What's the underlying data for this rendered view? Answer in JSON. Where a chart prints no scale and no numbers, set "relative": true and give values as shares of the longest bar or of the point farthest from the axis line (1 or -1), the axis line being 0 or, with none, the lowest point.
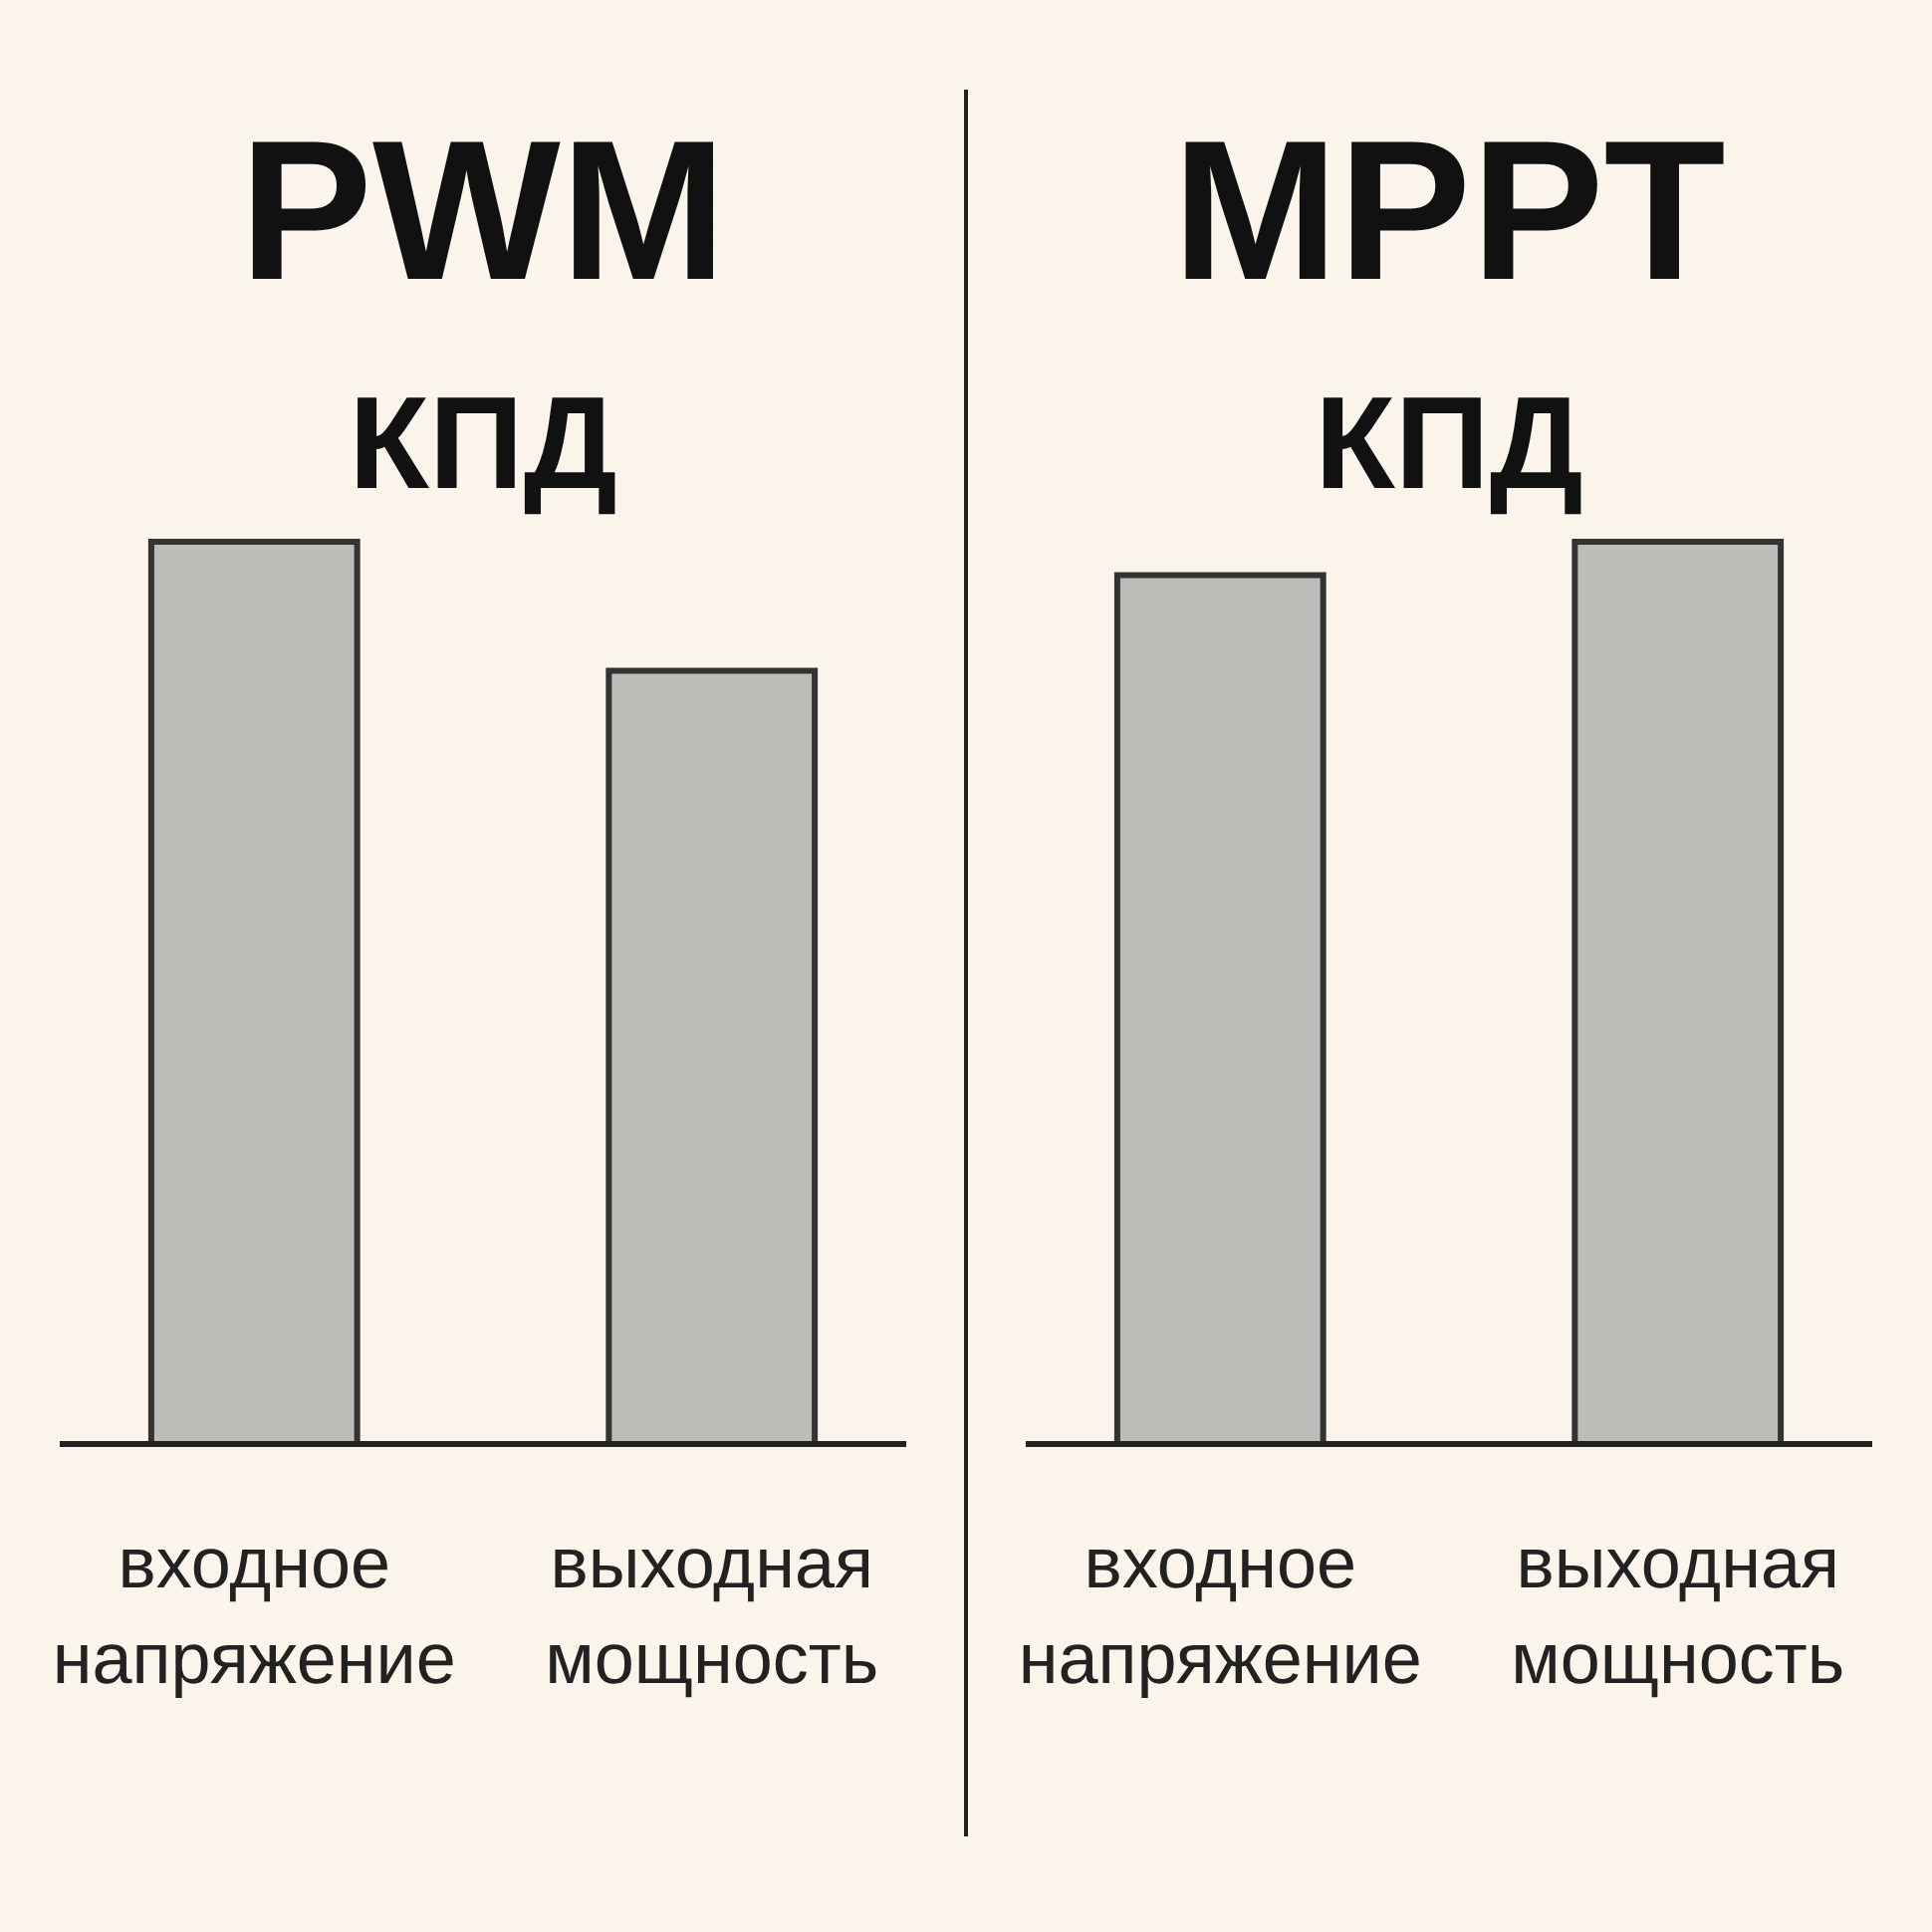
{
  "chart_data": [
    {
      "type": "bar",
      "title": "PWM",
      "subtitle": "КПД",
      "categories": [
        "входное напряжение",
        "выходная мощность"
      ],
      "values": [
        1,
        0.857
      ],
      "color": "#bdbcb8",
      "relative": true
    },
    {
      "type": "bar",
      "title": "MPPT",
      "subtitle": "КПД",
      "categories": [
        "входное напряжение",
        "выходная мощность"
      ],
      "values": [
        0.963,
        1
      ],
      "color": "#bdbcb8",
      "relative": true
    }
  ]
}
